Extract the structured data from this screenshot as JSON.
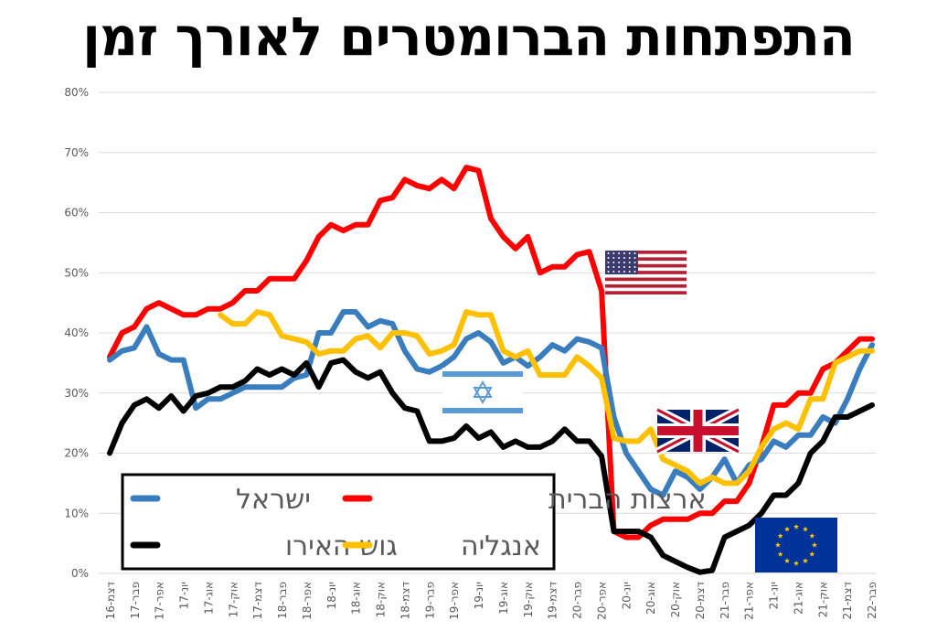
{
  "page": {
    "title": "התפתחות הברומטרים לאורך זמן"
  },
  "colors": {
    "israel": "#3a7dbf",
    "usa": "#ff0000",
    "eurozone": "#000000",
    "england": "#ffc000",
    "grid": "#d9d9d9"
  },
  "chart_data": {
    "type": "line",
    "title": "התפתחות הברומטרים לאורך זמן",
    "ylim": [
      0,
      80
    ],
    "yticks": [
      "0%",
      "10%",
      "20%",
      "30%",
      "40%",
      "50%",
      "60%",
      "70%",
      "80%"
    ],
    "grid": "horizontal",
    "legend_position": "bottom-left",
    "x_labels": [
      "דצמ-16",
      "פבר-17",
      "אפר-17",
      "יונ-17",
      "אוג-17",
      "אוק-17",
      "דצמ-17",
      "פבר-18",
      "אפר-18",
      "יונ-18",
      "אוג-18",
      "אוק-18",
      "דצמ-18",
      "פבר-19",
      "אפר-19",
      "יונ-19",
      "אוג-19",
      "אוק-19",
      "דצמ-19",
      "פבר-20",
      "אפר-20",
      "יונ-20",
      "אוג-20",
      "אוק-20",
      "דצמ-20",
      "פבר-21",
      "אפר-21",
      "יונ-21",
      "אוג-21",
      "אוק-21",
      "דצמ-21",
      "פבר-22"
    ],
    "series": [
      {
        "name": "ישראל",
        "key": "israel",
        "values": [
          35.5,
          37,
          37.5,
          41,
          36.5,
          35.5,
          35.5,
          27.5,
          29,
          29,
          30,
          31,
          31,
          31,
          31,
          32.5,
          33,
          40,
          40,
          43.5,
          43.5,
          41,
          42,
          41.5,
          37,
          34,
          33.5,
          34.5,
          36,
          39,
          40,
          38.5,
          35,
          36,
          34.5,
          36,
          38,
          37,
          39,
          38.5,
          37.5,
          26,
          20,
          17,
          14,
          13,
          17,
          16,
          14,
          16,
          19,
          15,
          18,
          19,
          22,
          21,
          23,
          23,
          26,
          25,
          29,
          34,
          38
        ]
      },
      {
        "name": "ארצות הברית",
        "key": "usa",
        "values": [
          36,
          40,
          41,
          44,
          45,
          44,
          43,
          43,
          44,
          44,
          45,
          47,
          47,
          49,
          49,
          49,
          52,
          56,
          58,
          57,
          58,
          58,
          62,
          62.5,
          65.5,
          64.5,
          64,
          65.5,
          64,
          67.5,
          67,
          59,
          56,
          54,
          56,
          50,
          51,
          51,
          53,
          53.5,
          47,
          7,
          6,
          6,
          8,
          9,
          9,
          9,
          10,
          10,
          12,
          12,
          15,
          21,
          28,
          28,
          30,
          30,
          34,
          35,
          37,
          39,
          39
        ]
      },
      {
        "name": "גוש האירו",
        "key": "eurozone",
        "values": [
          20,
          25,
          28,
          29,
          27.5,
          29.5,
          27,
          29.5,
          30,
          31,
          31,
          32,
          34,
          33,
          34,
          33,
          35,
          31,
          35,
          35.5,
          33.5,
          32.5,
          33.5,
          30,
          27.5,
          27,
          22,
          22,
          22.5,
          24.5,
          22.5,
          23.5,
          21,
          22,
          21,
          21,
          22,
          24,
          22,
          22,
          19.5,
          7,
          7,
          7,
          6,
          3,
          2,
          1,
          0.2,
          0.5,
          6,
          7,
          8,
          10,
          13,
          13,
          15,
          20,
          22,
          26,
          26,
          27,
          28
        ]
      },
      {
        "name": "אנגליה",
        "key": "england",
        "values": [
          null,
          null,
          null,
          null,
          null,
          null,
          null,
          null,
          null,
          43,
          41.5,
          41.5,
          43.5,
          43,
          39.5,
          39,
          38.5,
          36.5,
          37,
          37,
          39,
          39.5,
          37.5,
          40,
          40,
          39.5,
          36.5,
          37,
          38,
          43.5,
          43,
          43,
          37,
          36,
          37,
          33,
          33,
          33,
          36,
          34.5,
          32.5,
          22.5,
          22,
          22,
          24,
          19,
          18,
          17,
          15,
          16,
          15,
          15,
          17,
          21,
          24,
          25,
          24,
          29,
          29,
          35,
          36,
          37,
          37
        ]
      }
    ]
  },
  "legend": {
    "items": [
      {
        "key": "israel",
        "label": "ישראל"
      },
      {
        "key": "usa",
        "label": "ארצות הברית"
      },
      {
        "key": "eurozone",
        "label": "גוש האירו"
      },
      {
        "key": "england",
        "label": "אנגליה"
      }
    ]
  },
  "flags": {
    "usa": "us-flag-icon",
    "israel": "israel-flag-icon",
    "uk": "uk-flag-icon",
    "eu": "eu-flag-icon"
  }
}
